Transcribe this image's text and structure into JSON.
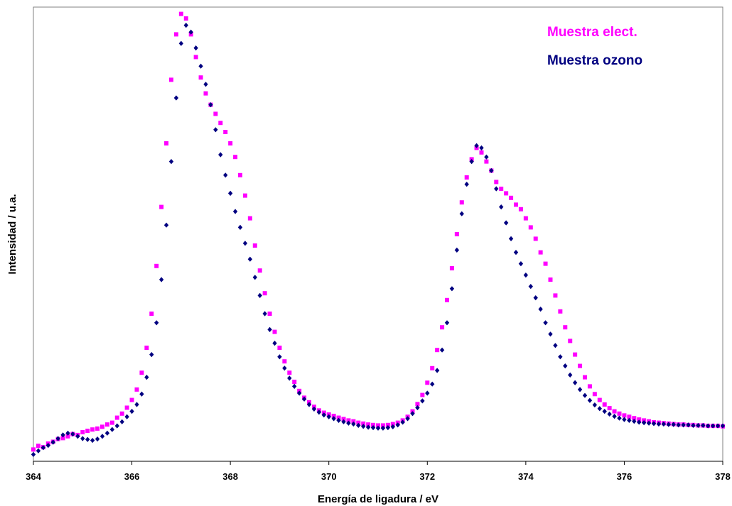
{
  "chart_data": {
    "type": "scatter",
    "xlabel": "Energía de ligadura / eV",
    "ylabel": "Intensidad / u.a.",
    "xlim": [
      364,
      378
    ],
    "ylim": [
      0,
      100
    ],
    "xticks": [
      364,
      366,
      368,
      370,
      372,
      374,
      376,
      378
    ],
    "yticks_shown": false,
    "grid": false,
    "legend_position": "top-right",
    "series": [
      {
        "name": "Muestra elect.",
        "color": "#ff00ff",
        "marker": "square",
        "points": [
          [
            364.0,
            2.6
          ],
          [
            364.1,
            3.4
          ],
          [
            364.2,
            3.1
          ],
          [
            364.3,
            3.9
          ],
          [
            364.4,
            4.3
          ],
          [
            364.5,
            4.9
          ],
          [
            364.6,
            5.1
          ],
          [
            364.7,
            5.5
          ],
          [
            364.8,
            6.0
          ],
          [
            364.9,
            5.8
          ],
          [
            365.0,
            6.4
          ],
          [
            365.1,
            6.7
          ],
          [
            365.2,
            7.0
          ],
          [
            365.3,
            7.2
          ],
          [
            365.4,
            7.6
          ],
          [
            365.5,
            8.1
          ],
          [
            365.6,
            8.5
          ],
          [
            365.7,
            9.6
          ],
          [
            365.8,
            10.5
          ],
          [
            365.9,
            11.8
          ],
          [
            366.0,
            13.5
          ],
          [
            366.1,
            15.8
          ],
          [
            366.2,
            19.5
          ],
          [
            366.3,
            25.0
          ],
          [
            366.4,
            32.5
          ],
          [
            366.5,
            43.0
          ],
          [
            366.6,
            56.0
          ],
          [
            366.7,
            70.0
          ],
          [
            366.8,
            84.0
          ],
          [
            366.9,
            94.0
          ],
          [
            367.0,
            98.5
          ],
          [
            367.1,
            97.5
          ],
          [
            367.2,
            94.0
          ],
          [
            367.3,
            89.0
          ],
          [
            367.4,
            84.5
          ],
          [
            367.5,
            81.0
          ],
          [
            367.6,
            78.5
          ],
          [
            367.7,
            76.5
          ],
          [
            367.8,
            74.5
          ],
          [
            367.9,
            72.5
          ],
          [
            368.0,
            70.0
          ],
          [
            368.1,
            67.0
          ],
          [
            368.2,
            63.0
          ],
          [
            368.3,
            58.5
          ],
          [
            368.4,
            53.5
          ],
          [
            368.5,
            47.5
          ],
          [
            368.6,
            42.0
          ],
          [
            368.7,
            37.0
          ],
          [
            368.8,
            32.5
          ],
          [
            368.9,
            28.5
          ],
          [
            369.0,
            25.0
          ],
          [
            369.1,
            22.0
          ],
          [
            369.2,
            19.5
          ],
          [
            369.3,
            17.5
          ],
          [
            369.4,
            15.5
          ],
          [
            369.5,
            14.0
          ],
          [
            369.6,
            13.0
          ],
          [
            369.7,
            12.0
          ],
          [
            369.8,
            11.2
          ],
          [
            369.9,
            10.7
          ],
          [
            370.0,
            10.3
          ],
          [
            370.1,
            10.0
          ],
          [
            370.2,
            9.6
          ],
          [
            370.3,
            9.3
          ],
          [
            370.4,
            9.0
          ],
          [
            370.5,
            8.8
          ],
          [
            370.6,
            8.5
          ],
          [
            370.7,
            8.3
          ],
          [
            370.8,
            8.1
          ],
          [
            370.9,
            8.0
          ],
          [
            371.0,
            7.9
          ],
          [
            371.1,
            7.9
          ],
          [
            371.2,
            8.0
          ],
          [
            371.3,
            8.2
          ],
          [
            371.4,
            8.5
          ],
          [
            371.5,
            9.0
          ],
          [
            371.6,
            9.8
          ],
          [
            371.7,
            11.0
          ],
          [
            371.8,
            12.6
          ],
          [
            371.9,
            14.6
          ],
          [
            372.0,
            17.3
          ],
          [
            372.1,
            20.5
          ],
          [
            372.2,
            24.5
          ],
          [
            372.3,
            29.5
          ],
          [
            372.4,
            35.5
          ],
          [
            372.5,
            42.5
          ],
          [
            372.6,
            50.0
          ],
          [
            372.7,
            57.0
          ],
          [
            372.8,
            62.5
          ],
          [
            372.9,
            66.5
          ],
          [
            373.0,
            69.0
          ],
          [
            373.1,
            68.0
          ],
          [
            373.2,
            66.0
          ],
          [
            373.3,
            64.0
          ],
          [
            373.4,
            61.5
          ],
          [
            373.5,
            60.0
          ],
          [
            373.6,
            59.0
          ],
          [
            373.7,
            58.0
          ],
          [
            373.8,
            56.5
          ],
          [
            373.9,
            55.5
          ],
          [
            374.0,
            53.5
          ],
          [
            374.1,
            51.5
          ],
          [
            374.2,
            49.0
          ],
          [
            374.3,
            46.0
          ],
          [
            374.4,
            43.5
          ],
          [
            374.5,
            40.0
          ],
          [
            374.6,
            36.5
          ],
          [
            374.7,
            33.0
          ],
          [
            374.8,
            29.5
          ],
          [
            374.9,
            26.5
          ],
          [
            375.0,
            23.5
          ],
          [
            375.1,
            21.0
          ],
          [
            375.2,
            18.5
          ],
          [
            375.3,
            16.5
          ],
          [
            375.4,
            14.8
          ],
          [
            375.5,
            13.5
          ],
          [
            375.6,
            12.5
          ],
          [
            375.7,
            11.7
          ],
          [
            375.8,
            11.0
          ],
          [
            375.9,
            10.5
          ],
          [
            376.0,
            10.1
          ],
          [
            376.1,
            9.8
          ],
          [
            376.2,
            9.5
          ],
          [
            376.3,
            9.2
          ],
          [
            376.4,
            9.0
          ],
          [
            376.5,
            8.8
          ],
          [
            376.6,
            8.6
          ],
          [
            376.7,
            8.5
          ],
          [
            376.8,
            8.4
          ],
          [
            376.9,
            8.3
          ],
          [
            377.0,
            8.2
          ],
          [
            377.1,
            8.1
          ],
          [
            377.2,
            8.1
          ],
          [
            377.3,
            8.0
          ],
          [
            377.4,
            8.0
          ],
          [
            377.5,
            7.9
          ],
          [
            377.6,
            7.9
          ],
          [
            377.7,
            7.8
          ],
          [
            377.8,
            7.8
          ],
          [
            377.9,
            7.8
          ],
          [
            378.0,
            7.7
          ]
        ]
      },
      {
        "name": "Muestra ozono",
        "color": "#000080",
        "marker": "diamond",
        "points": [
          [
            364.0,
            1.5
          ],
          [
            364.1,
            2.3
          ],
          [
            364.2,
            3.0
          ],
          [
            364.3,
            3.5
          ],
          [
            364.4,
            4.2
          ],
          [
            364.5,
            5.0
          ],
          [
            364.6,
            5.8
          ],
          [
            364.7,
            6.2
          ],
          [
            364.8,
            6.0
          ],
          [
            364.9,
            5.5
          ],
          [
            365.0,
            5.0
          ],
          [
            365.1,
            4.8
          ],
          [
            365.2,
            4.6
          ],
          [
            365.3,
            4.9
          ],
          [
            365.4,
            5.5
          ],
          [
            365.5,
            6.2
          ],
          [
            365.6,
            7.0
          ],
          [
            365.7,
            7.8
          ],
          [
            365.8,
            8.7
          ],
          [
            365.9,
            9.8
          ],
          [
            366.0,
            11.0
          ],
          [
            366.1,
            12.5
          ],
          [
            366.2,
            14.8
          ],
          [
            366.3,
            18.5
          ],
          [
            366.4,
            23.5
          ],
          [
            366.5,
            30.5
          ],
          [
            366.6,
            40.0
          ],
          [
            366.7,
            52.0
          ],
          [
            366.8,
            66.0
          ],
          [
            366.9,
            80.0
          ],
          [
            367.0,
            92.0
          ],
          [
            367.1,
            96.0
          ],
          [
            367.2,
            94.5
          ],
          [
            367.3,
            91.0
          ],
          [
            367.4,
            87.0
          ],
          [
            367.5,
            83.0
          ],
          [
            367.6,
            78.5
          ],
          [
            367.7,
            73.0
          ],
          [
            367.8,
            67.5
          ],
          [
            367.9,
            63.0
          ],
          [
            368.0,
            59.0
          ],
          [
            368.1,
            55.0
          ],
          [
            368.2,
            51.5
          ],
          [
            368.3,
            48.0
          ],
          [
            368.4,
            44.5
          ],
          [
            368.5,
            40.5
          ],
          [
            368.6,
            36.5
          ],
          [
            368.7,
            32.5
          ],
          [
            368.8,
            29.0
          ],
          [
            368.9,
            26.0
          ],
          [
            369.0,
            23.0
          ],
          [
            369.1,
            20.5
          ],
          [
            369.2,
            18.3
          ],
          [
            369.3,
            16.5
          ],
          [
            369.4,
            15.0
          ],
          [
            369.5,
            13.7
          ],
          [
            369.6,
            12.5
          ],
          [
            369.7,
            11.5
          ],
          [
            369.8,
            10.8
          ],
          [
            369.9,
            10.2
          ],
          [
            370.0,
            9.8
          ],
          [
            370.1,
            9.4
          ],
          [
            370.2,
            9.0
          ],
          [
            370.3,
            8.7
          ],
          [
            370.4,
            8.4
          ],
          [
            370.5,
            8.2
          ],
          [
            370.6,
            7.9
          ],
          [
            370.7,
            7.7
          ],
          [
            370.8,
            7.5
          ],
          [
            370.9,
            7.4
          ],
          [
            371.0,
            7.3
          ],
          [
            371.1,
            7.3
          ],
          [
            371.2,
            7.4
          ],
          [
            371.3,
            7.6
          ],
          [
            371.4,
            8.0
          ],
          [
            371.5,
            8.6
          ],
          [
            371.6,
            9.4
          ],
          [
            371.7,
            10.5
          ],
          [
            371.8,
            11.8
          ],
          [
            371.9,
            13.3
          ],
          [
            372.0,
            15.0
          ],
          [
            372.1,
            17.0
          ],
          [
            372.2,
            20.0
          ],
          [
            372.3,
            24.5
          ],
          [
            372.4,
            30.5
          ],
          [
            372.5,
            38.0
          ],
          [
            372.6,
            46.5
          ],
          [
            372.7,
            54.5
          ],
          [
            372.8,
            61.0
          ],
          [
            372.9,
            66.0
          ],
          [
            373.0,
            69.5
          ],
          [
            373.1,
            69.0
          ],
          [
            373.2,
            67.0
          ],
          [
            373.3,
            64.0
          ],
          [
            373.4,
            60.0
          ],
          [
            373.5,
            56.0
          ],
          [
            373.6,
            52.5
          ],
          [
            373.7,
            49.0
          ],
          [
            373.8,
            46.0
          ],
          [
            373.9,
            43.5
          ],
          [
            374.0,
            41.0
          ],
          [
            374.1,
            38.5
          ],
          [
            374.2,
            36.0
          ],
          [
            374.3,
            33.5
          ],
          [
            374.4,
            30.5
          ],
          [
            374.5,
            28.0
          ],
          [
            374.6,
            25.5
          ],
          [
            374.7,
            23.0
          ],
          [
            374.8,
            21.0
          ],
          [
            374.9,
            19.0
          ],
          [
            375.0,
            17.3
          ],
          [
            375.1,
            15.8
          ],
          [
            375.2,
            14.5
          ],
          [
            375.3,
            13.4
          ],
          [
            375.4,
            12.4
          ],
          [
            375.5,
            11.6
          ],
          [
            375.6,
            11.0
          ],
          [
            375.7,
            10.4
          ],
          [
            375.8,
            9.9
          ],
          [
            375.9,
            9.5
          ],
          [
            376.0,
            9.2
          ],
          [
            376.1,
            9.0
          ],
          [
            376.2,
            8.8
          ],
          [
            376.3,
            8.6
          ],
          [
            376.4,
            8.5
          ],
          [
            376.5,
            8.4
          ],
          [
            376.6,
            8.3
          ],
          [
            376.7,
            8.2
          ],
          [
            376.8,
            8.2
          ],
          [
            376.9,
            8.1
          ],
          [
            377.0,
            8.1
          ],
          [
            377.1,
            8.0
          ],
          [
            377.2,
            8.0
          ],
          [
            377.3,
            8.0
          ],
          [
            377.4,
            7.9
          ],
          [
            377.5,
            7.9
          ],
          [
            377.6,
            7.9
          ],
          [
            377.7,
            7.8
          ],
          [
            377.8,
            7.8
          ],
          [
            377.9,
            7.8
          ],
          [
            378.0,
            7.8
          ]
        ]
      }
    ]
  }
}
